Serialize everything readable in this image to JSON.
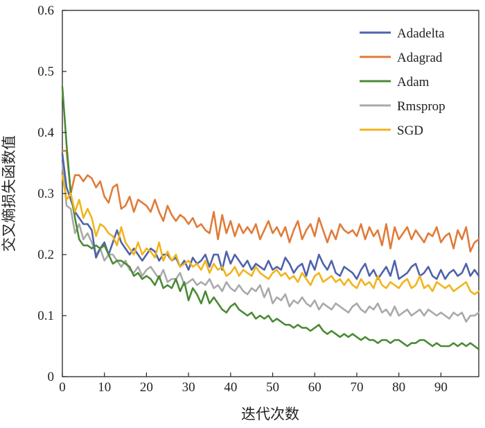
{
  "chart_data": {
    "type": "line",
    "title": "",
    "xlabel": "迭代次数",
    "ylabel": "交叉熵损失函数值",
    "xlim": [
      0,
      99
    ],
    "ylim": [
      0,
      0.6
    ],
    "xticks": [
      0,
      10,
      20,
      30,
      40,
      50,
      60,
      70,
      80,
      90
    ],
    "yticks": [
      0,
      0.1,
      0.2,
      0.3,
      0.4,
      0.5,
      0.6
    ],
    "grid": false,
    "legend_position": "top-right",
    "x": [
      0,
      1,
      2,
      3,
      4,
      5,
      6,
      7,
      8,
      9,
      10,
      11,
      12,
      13,
      14,
      15,
      16,
      17,
      18,
      19,
      20,
      21,
      22,
      23,
      24,
      25,
      26,
      27,
      28,
      29,
      30,
      31,
      32,
      33,
      34,
      35,
      36,
      37,
      38,
      39,
      40,
      41,
      42,
      43,
      44,
      45,
      46,
      47,
      48,
      49,
      50,
      51,
      52,
      53,
      54,
      55,
      56,
      57,
      58,
      59,
      60,
      61,
      62,
      63,
      64,
      65,
      66,
      67,
      68,
      69,
      70,
      71,
      72,
      73,
      74,
      75,
      76,
      77,
      78,
      79,
      80,
      81,
      82,
      83,
      84,
      85,
      86,
      87,
      88,
      89,
      90,
      91,
      92,
      93,
      94,
      95,
      96,
      97,
      98,
      99
    ],
    "series": [
      {
        "name": "Adadelta",
        "color": "#4E63A8",
        "values": [
          0.365,
          0.31,
          0.29,
          0.27,
          0.26,
          0.25,
          0.25,
          0.24,
          0.195,
          0.21,
          0.22,
          0.2,
          0.22,
          0.24,
          0.22,
          0.21,
          0.2,
          0.21,
          0.2,
          0.19,
          0.2,
          0.21,
          0.205,
          0.19,
          0.2,
          0.2,
          0.19,
          0.195,
          0.18,
          0.19,
          0.175,
          0.195,
          0.185,
          0.19,
          0.2,
          0.18,
          0.2,
          0.2,
          0.175,
          0.205,
          0.185,
          0.2,
          0.19,
          0.18,
          0.19,
          0.175,
          0.185,
          0.18,
          0.175,
          0.19,
          0.175,
          0.18,
          0.175,
          0.195,
          0.185,
          0.17,
          0.18,
          0.185,
          0.165,
          0.19,
          0.175,
          0.2,
          0.185,
          0.175,
          0.19,
          0.17,
          0.165,
          0.18,
          0.175,
          0.17,
          0.16,
          0.175,
          0.185,
          0.165,
          0.175,
          0.16,
          0.17,
          0.18,
          0.165,
          0.19,
          0.16,
          0.165,
          0.17,
          0.18,
          0.185,
          0.165,
          0.17,
          0.18,
          0.165,
          0.16,
          0.175,
          0.16,
          0.17,
          0.175,
          0.165,
          0.17,
          0.185,
          0.165,
          0.175,
          0.165
        ]
      },
      {
        "name": "Adagrad",
        "color": "#E07B39",
        "values": [
          0.37,
          0.37,
          0.3,
          0.33,
          0.33,
          0.32,
          0.33,
          0.325,
          0.31,
          0.32,
          0.295,
          0.285,
          0.31,
          0.315,
          0.275,
          0.28,
          0.295,
          0.27,
          0.29,
          0.285,
          0.28,
          0.27,
          0.29,
          0.27,
          0.255,
          0.28,
          0.265,
          0.255,
          0.265,
          0.26,
          0.25,
          0.26,
          0.245,
          0.25,
          0.24,
          0.235,
          0.27,
          0.225,
          0.265,
          0.235,
          0.255,
          0.23,
          0.25,
          0.235,
          0.245,
          0.235,
          0.25,
          0.225,
          0.24,
          0.255,
          0.235,
          0.245,
          0.23,
          0.245,
          0.22,
          0.24,
          0.255,
          0.225,
          0.24,
          0.25,
          0.23,
          0.26,
          0.24,
          0.22,
          0.24,
          0.225,
          0.25,
          0.24,
          0.235,
          0.24,
          0.23,
          0.25,
          0.225,
          0.245,
          0.23,
          0.24,
          0.215,
          0.25,
          0.21,
          0.245,
          0.225,
          0.235,
          0.245,
          0.225,
          0.24,
          0.23,
          0.22,
          0.235,
          0.23,
          0.245,
          0.22,
          0.23,
          0.235,
          0.21,
          0.24,
          0.225,
          0.245,
          0.205,
          0.22,
          0.225
        ]
      },
      {
        "name": "Adam",
        "color": "#4A8A34",
        "values": [
          0.475,
          0.38,
          0.3,
          0.26,
          0.225,
          0.215,
          0.215,
          0.21,
          0.215,
          0.21,
          0.215,
          0.2,
          0.185,
          0.19,
          0.19,
          0.185,
          0.18,
          0.165,
          0.17,
          0.16,
          0.165,
          0.16,
          0.15,
          0.165,
          0.145,
          0.15,
          0.145,
          0.16,
          0.14,
          0.155,
          0.125,
          0.145,
          0.135,
          0.12,
          0.14,
          0.12,
          0.13,
          0.12,
          0.11,
          0.105,
          0.115,
          0.12,
          0.11,
          0.105,
          0.1,
          0.105,
          0.095,
          0.1,
          0.095,
          0.1,
          0.09,
          0.095,
          0.09,
          0.085,
          0.085,
          0.08,
          0.085,
          0.08,
          0.08,
          0.075,
          0.08,
          0.085,
          0.075,
          0.07,
          0.075,
          0.07,
          0.065,
          0.07,
          0.065,
          0.07,
          0.065,
          0.06,
          0.065,
          0.06,
          0.06,
          0.055,
          0.06,
          0.06,
          0.055,
          0.06,
          0.06,
          0.055,
          0.05,
          0.055,
          0.055,
          0.06,
          0.06,
          0.055,
          0.05,
          0.055,
          0.05,
          0.05,
          0.05,
          0.055,
          0.05,
          0.055,
          0.05,
          0.055,
          0.05,
          0.045
        ]
      },
      {
        "name": "Rmsprop",
        "color": "#A9A9A9",
        "values": [
          0.35,
          0.28,
          0.275,
          0.235,
          0.25,
          0.225,
          0.235,
          0.22,
          0.2,
          0.21,
          0.19,
          0.2,
          0.2,
          0.19,
          0.18,
          0.19,
          0.175,
          0.17,
          0.18,
          0.165,
          0.175,
          0.18,
          0.17,
          0.16,
          0.175,
          0.155,
          0.16,
          0.16,
          0.17,
          0.15,
          0.155,
          0.16,
          0.15,
          0.155,
          0.15,
          0.16,
          0.145,
          0.15,
          0.14,
          0.155,
          0.145,
          0.14,
          0.15,
          0.14,
          0.135,
          0.145,
          0.14,
          0.15,
          0.13,
          0.145,
          0.12,
          0.13,
          0.125,
          0.135,
          0.115,
          0.125,
          0.12,
          0.13,
          0.12,
          0.115,
          0.125,
          0.11,
          0.12,
          0.115,
          0.11,
          0.12,
          0.115,
          0.11,
          0.105,
          0.115,
          0.12,
          0.11,
          0.105,
          0.115,
          0.11,
          0.12,
          0.105,
          0.11,
          0.1,
          0.115,
          0.1,
          0.105,
          0.11,
          0.1,
          0.105,
          0.11,
          0.1,
          0.11,
          0.105,
          0.1,
          0.105,
          0.1,
          0.095,
          0.105,
          0.1,
          0.105,
          0.09,
          0.1,
          0.1,
          0.105
        ]
      },
      {
        "name": "SGD",
        "color": "#F2B41C",
        "values": [
          0.33,
          0.29,
          0.3,
          0.27,
          0.29,
          0.26,
          0.275,
          0.26,
          0.23,
          0.25,
          0.245,
          0.235,
          0.23,
          0.215,
          0.245,
          0.22,
          0.21,
          0.2,
          0.22,
          0.2,
          0.21,
          0.205,
          0.195,
          0.22,
          0.19,
          0.205,
          0.19,
          0.2,
          0.18,
          0.185,
          0.19,
          0.18,
          0.185,
          0.175,
          0.19,
          0.17,
          0.185,
          0.175,
          0.18,
          0.165,
          0.17,
          0.18,
          0.165,
          0.175,
          0.17,
          0.165,
          0.18,
          0.17,
          0.165,
          0.16,
          0.17,
          0.175,
          0.165,
          0.17,
          0.16,
          0.165,
          0.155,
          0.17,
          0.16,
          0.15,
          0.165,
          0.17,
          0.155,
          0.16,
          0.165,
          0.155,
          0.16,
          0.15,
          0.16,
          0.15,
          0.145,
          0.16,
          0.15,
          0.155,
          0.145,
          0.165,
          0.15,
          0.145,
          0.155,
          0.15,
          0.145,
          0.155,
          0.16,
          0.145,
          0.15,
          0.165,
          0.145,
          0.15,
          0.14,
          0.155,
          0.15,
          0.145,
          0.15,
          0.14,
          0.145,
          0.15,
          0.155,
          0.14,
          0.135,
          0.14
        ]
      }
    ]
  }
}
